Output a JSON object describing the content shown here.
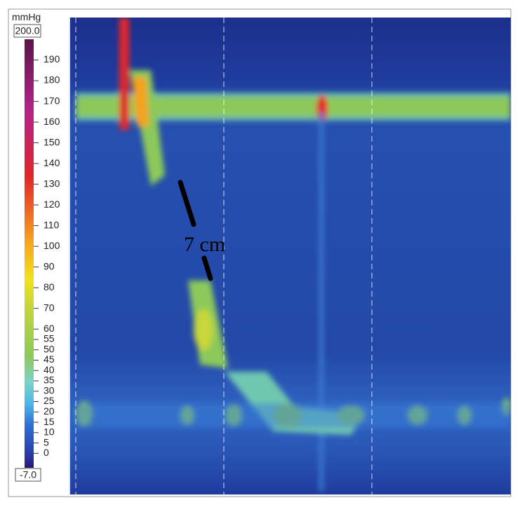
{
  "colorbar": {
    "unit": "mmHg",
    "max": "200.0",
    "min": "-7.0",
    "ticks": [
      190,
      180,
      170,
      160,
      150,
      140,
      130,
      120,
      110,
      100,
      90,
      80,
      70,
      60,
      55,
      50,
      45,
      40,
      35,
      30,
      25,
      20,
      15,
      10,
      5,
      0
    ]
  },
  "annotation": "7 cm"
}
